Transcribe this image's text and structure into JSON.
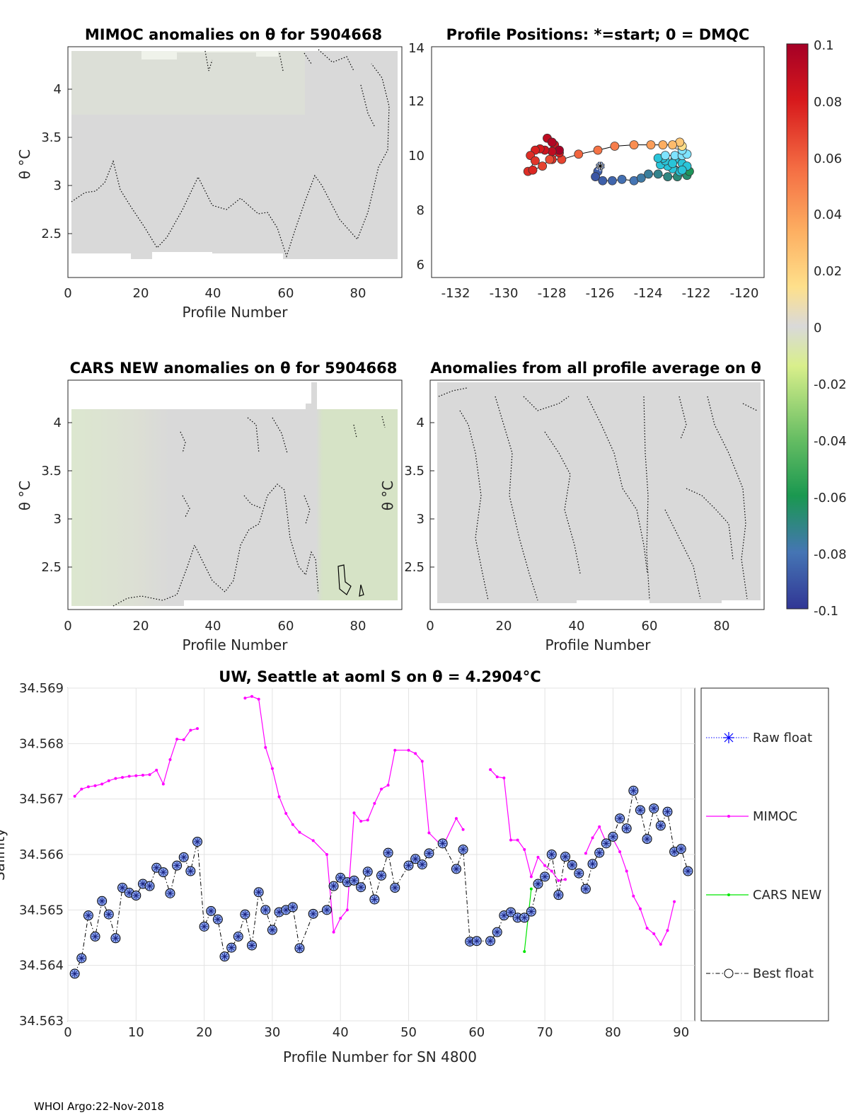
{
  "footer": "WHOI Argo:22-Nov-2018",
  "theta_symbol": "θ",
  "colorbar": {
    "ticks": [
      "0.1",
      "0.08",
      "0.06",
      "0.04",
      "0.02",
      "0",
      "-0.02",
      "-0.04",
      "-0.06",
      "-0.08",
      "-0.1"
    ],
    "colors": [
      "#a50026",
      "#d7191c",
      "#f46d43",
      "#fdae61",
      "#fee08b",
      "#d9d9d9",
      "#d9ef8b",
      "#66bd63",
      "#1a9850",
      "#4575b4",
      "#313695"
    ]
  },
  "panels": {
    "mimoc": {
      "title": "MIMOC anomalies on θ  for 5904668",
      "xlabel": "Profile Number",
      "ylabel": "θ °C",
      "xticks": [
        "0",
        "20",
        "40",
        "60",
        "80"
      ],
      "yticks": [
        "4",
        "3.5",
        "3",
        "2.5"
      ]
    },
    "positions": {
      "title": "Profile Positions: *=start; 0 = DMQC",
      "xticks": [
        "-132",
        "-130",
        "-128",
        "-126",
        "-124",
        "-122",
        "-120"
      ],
      "yticks": [
        "14",
        "12",
        "10",
        "8",
        "6"
      ]
    },
    "cars": {
      "title": "CARS NEW anomalies on θ for 5904668",
      "xlabel": "Profile Number",
      "ylabel": "θ °C",
      "xticks": [
        "0",
        "20",
        "40",
        "60",
        "80"
      ],
      "yticks": [
        "4",
        "3.5",
        "3",
        "2.5"
      ]
    },
    "allprof": {
      "title": "Anomalies from all profile average on θ",
      "xlabel": "Profile Number",
      "ylabel": "θ °C",
      "xticks": [
        "0",
        "20",
        "40",
        "60",
        "80"
      ],
      "yticks": [
        "4",
        "3.5",
        "3",
        "2.5"
      ]
    }
  },
  "chart_data": [
    {
      "type": "line",
      "title": "UW, Seattle at aoml S on θ = 4.2904°C",
      "xlabel": "Profile Number for SN 4800",
      "ylabel": "Salinity",
      "xlim": [
        0,
        92
      ],
      "ylim": [
        34.563,
        34.569
      ],
      "xticks": [
        "0",
        "10",
        "20",
        "30",
        "40",
        "50",
        "60",
        "70",
        "80",
        "90"
      ],
      "yticks": [
        "34.569",
        "34.568",
        "34.567",
        "34.566",
        "34.565",
        "34.564",
        "34.563"
      ],
      "legend": [
        "Raw float",
        "MIMOC",
        "CARS NEW",
        "Best float"
      ],
      "series": [
        {
          "name": "MIMOC",
          "color": "#ff00ff",
          "x": [
            1,
            2,
            3,
            4,
            5,
            6,
            7,
            8,
            9,
            10,
            11,
            12,
            13,
            14,
            15,
            16,
            17,
            18,
            19
          ],
          "values": [
            34.56705,
            34.56718,
            34.56722,
            34.56724,
            34.56727,
            34.56733,
            34.56737,
            34.56739,
            34.56741,
            34.56742,
            34.56743,
            34.56744,
            34.56752,
            34.56727,
            34.56771,
            34.56808,
            34.56807,
            34.56824,
            34.56827
          ]
        },
        {
          "name": "MIMOC_2",
          "color": "#ff00ff",
          "x": [
            26,
            27,
            28,
            29,
            30,
            31,
            32,
            33,
            34,
            36,
            38,
            39,
            40,
            41,
            42,
            43,
            44,
            45,
            46,
            47,
            48,
            50,
            51,
            52,
            53,
            55,
            57,
            58
          ],
          "values": [
            34.56882,
            34.56885,
            34.5688,
            34.56793,
            34.56755,
            34.56704,
            34.56674,
            34.56654,
            34.5664,
            34.56625,
            34.566,
            34.5646,
            34.56485,
            34.565,
            34.56675,
            34.5666,
            34.56662,
            34.56692,
            34.56718,
            34.56725,
            34.56788,
            34.56788,
            34.56782,
            34.56768,
            34.56639,
            34.56614,
            34.56665,
            34.56645
          ]
        },
        {
          "name": "MIMOC_3",
          "color": "#ff00ff",
          "x": [
            62,
            63,
            64,
            65,
            66,
            67,
            68,
            69,
            70,
            71,
            72,
            73
          ],
          "values": [
            34.56753,
            34.5674,
            34.56738,
            34.56626,
            34.56626,
            34.56609,
            34.5656,
            34.56595,
            34.5658,
            34.5657,
            34.56553,
            34.56555
          ]
        },
        {
          "name": "MIMOC_4",
          "color": "#ff00ff",
          "x": [
            76,
            77,
            78,
            79,
            80,
            81,
            82,
            83,
            84,
            85,
            86,
            87,
            88,
            89
          ],
          "values": [
            34.56602,
            34.5663,
            34.5665,
            34.56622,
            34.56628,
            34.56605,
            34.5657,
            34.56525,
            34.56502,
            34.56467,
            34.56457,
            34.56438,
            34.56463,
            34.56515
          ]
        },
        {
          "name": "CARS NEW",
          "color": "#00e600",
          "x": [
            67,
            68
          ],
          "values": [
            34.56425,
            34.56538
          ]
        },
        {
          "name": "Best float",
          "color": "#000000",
          "x": [
            1,
            2,
            3,
            4,
            5,
            6,
            7,
            8,
            9,
            10,
            11,
            12,
            13,
            14,
            15,
            16,
            17,
            18,
            19,
            20,
            21,
            22,
            23,
            24,
            25,
            26,
            27,
            28,
            29,
            30,
            31,
            32,
            33,
            34,
            36,
            38,
            39,
            40,
            41,
            42,
            43,
            44,
            45,
            46,
            47,
            48,
            50,
            51,
            52,
            53,
            55,
            57,
            58,
            59,
            60,
            62,
            63,
            64,
            65,
            66,
            67,
            68,
            69,
            70,
            71,
            72,
            73,
            74,
            75,
            76,
            77,
            78,
            79,
            80,
            81,
            82,
            83,
            84,
            85,
            86,
            87,
            88,
            89,
            90,
            91
          ],
          "values": [
            34.56385,
            34.56413,
            34.5649,
            34.56452,
            34.56516,
            34.56492,
            34.56449,
            34.5654,
            34.56531,
            34.56526,
            34.56547,
            34.56543,
            34.56576,
            34.56568,
            34.5653,
            34.5658,
            34.56595,
            34.5657,
            34.56623,
            34.5647,
            34.56498,
            34.56483,
            34.56416,
            34.56432,
            34.56452,
            34.56492,
            34.56436,
            34.56532,
            34.565,
            34.56464,
            34.56496,
            34.565,
            34.56505,
            34.56431,
            34.56493,
            34.565,
            34.56543,
            34.56558,
            34.5655,
            34.56553,
            34.56541,
            34.56569,
            34.56519,
            34.56562,
            34.56603,
            34.5654,
            34.5658,
            34.56592,
            34.56582,
            34.56602,
            34.5662,
            34.56574,
            34.56609,
            34.56443,
            34.56444,
            34.56444,
            34.5646,
            34.5649,
            34.56496,
            34.56486,
            34.56486,
            34.56497,
            34.56547,
            34.5656,
            34.566,
            34.56527,
            34.56596,
            34.56581,
            34.56566,
            34.56538,
            34.56583,
            34.56603,
            34.5662,
            34.56632,
            34.56665,
            34.56647,
            34.56715,
            34.5668,
            34.56628,
            34.56683,
            34.56652,
            34.56677,
            34.56605,
            34.5661,
            34.5657
          ]
        }
      ]
    },
    {
      "type": "scatter",
      "title": "Profile Positions: *=start; 0 = DMQC",
      "xlim": [
        -133,
        -119.2
      ],
      "ylim": [
        5.3,
        14
      ],
      "start": {
        "lon": -126.0,
        "lat": 9.5
      },
      "color_range": [
        -0.1,
        0.1
      ],
      "points": [
        {
          "lon": -126.0,
          "lat": 9.5,
          "v": -0.085
        },
        {
          "lon": -126.1,
          "lat": 9.3,
          "v": -0.088
        },
        {
          "lon": -126.2,
          "lat": 9.1,
          "v": -0.09
        },
        {
          "lon": -125.9,
          "lat": 8.95,
          "v": -0.087
        },
        {
          "lon": -125.5,
          "lat": 8.95,
          "v": -0.085
        },
        {
          "lon": -125.1,
          "lat": 9.0,
          "v": -0.082
        },
        {
          "lon": -124.6,
          "lat": 8.95,
          "v": -0.08
        },
        {
          "lon": -124.3,
          "lat": 9.05,
          "v": -0.077
        },
        {
          "lon": -124.0,
          "lat": 9.2,
          "v": -0.075
        },
        {
          "lon": -123.6,
          "lat": 9.2,
          "v": -0.072
        },
        {
          "lon": -123.2,
          "lat": 9.1,
          "v": -0.07
        },
        {
          "lon": -122.8,
          "lat": 9.1,
          "v": -0.068
        },
        {
          "lon": -122.4,
          "lat": 9.15,
          "v": -0.066
        },
        {
          "lon": -122.3,
          "lat": 9.3,
          "v": -0.062
        },
        {
          "lon": -122.7,
          "lat": 9.3,
          "v": -0.058
        },
        {
          "lon": -123.0,
          "lat": 9.4,
          "v": -0.055
        },
        {
          "lon": -123.2,
          "lat": 9.5,
          "v": -0.052
        },
        {
          "lon": -123.5,
          "lat": 9.55,
          "v": -0.05
        },
        {
          "lon": -123.3,
          "lat": 9.7,
          "v": -0.047
        },
        {
          "lon": -122.9,
          "lat": 9.75,
          "v": -0.045
        },
        {
          "lon": -122.6,
          "lat": 9.6,
          "v": -0.042
        },
        {
          "lon": -122.4,
          "lat": 9.5,
          "v": -0.04
        },
        {
          "lon": -122.6,
          "lat": 9.35,
          "v": -0.037
        },
        {
          "lon": -123.0,
          "lat": 9.6,
          "v": -0.035
        },
        {
          "lon": -123.4,
          "lat": 9.8,
          "v": -0.033
        },
        {
          "lon": -123.6,
          "lat": 9.8,
          "v": -0.03
        },
        {
          "lon": -123.3,
          "lat": 9.9,
          "v": -0.028
        },
        {
          "lon": -122.9,
          "lat": 9.9,
          "v": -0.026
        },
        {
          "lon": -122.6,
          "lat": 9.9,
          "v": -0.024
        },
        {
          "lon": -122.4,
          "lat": 9.95,
          "v": -0.02
        },
        {
          "lon": -122.6,
          "lat": 10.1,
          "v": -0.015
        },
        {
          "lon": -122.8,
          "lat": 10.3,
          "v": 0.0
        },
        {
          "lon": -122.6,
          "lat": 10.25,
          "v": 0.02
        },
        {
          "lon": -122.7,
          "lat": 10.4,
          "v": 0.03
        },
        {
          "lon": -123.0,
          "lat": 10.3,
          "v": 0.035
        },
        {
          "lon": -123.4,
          "lat": 10.3,
          "v": 0.04
        },
        {
          "lon": -123.9,
          "lat": 10.3,
          "v": 0.045
        },
        {
          "lon": -124.6,
          "lat": 10.3,
          "v": 0.05
        },
        {
          "lon": -125.4,
          "lat": 10.25,
          "v": 0.055
        },
        {
          "lon": -126.1,
          "lat": 10.1,
          "v": 0.058
        },
        {
          "lon": -126.9,
          "lat": 9.95,
          "v": 0.062
        },
        {
          "lon": -127.6,
          "lat": 9.75,
          "v": 0.07
        },
        {
          "lon": -128.0,
          "lat": 9.75,
          "v": 0.075
        },
        {
          "lon": -127.7,
          "lat": 10.0,
          "v": 0.08
        },
        {
          "lon": -127.9,
          "lat": 10.3,
          "v": 0.085
        },
        {
          "lon": -128.2,
          "lat": 10.55,
          "v": 0.09
        },
        {
          "lon": -128.0,
          "lat": 10.4,
          "v": 0.095
        },
        {
          "lon": -127.7,
          "lat": 10.1,
          "v": 0.1
        },
        {
          "lon": -128.0,
          "lat": 10.05,
          "v": 0.09
        },
        {
          "lon": -128.3,
          "lat": 10.1,
          "v": 0.085
        },
        {
          "lon": -128.5,
          "lat": 10.15,
          "v": 0.08
        },
        {
          "lon": -128.7,
          "lat": 10.1,
          "v": 0.078
        },
        {
          "lon": -128.9,
          "lat": 9.9,
          "v": 0.075
        },
        {
          "lon": -128.7,
          "lat": 9.7,
          "v": 0.073
        },
        {
          "lon": -129.0,
          "lat": 9.3,
          "v": 0.075
        },
        {
          "lon": -128.8,
          "lat": 9.35,
          "v": 0.077
        },
        {
          "lon": -128.4,
          "lat": 9.5,
          "v": 0.07
        },
        {
          "lon": -128.1,
          "lat": 9.75,
          "v": 0.068
        }
      ]
    }
  ]
}
